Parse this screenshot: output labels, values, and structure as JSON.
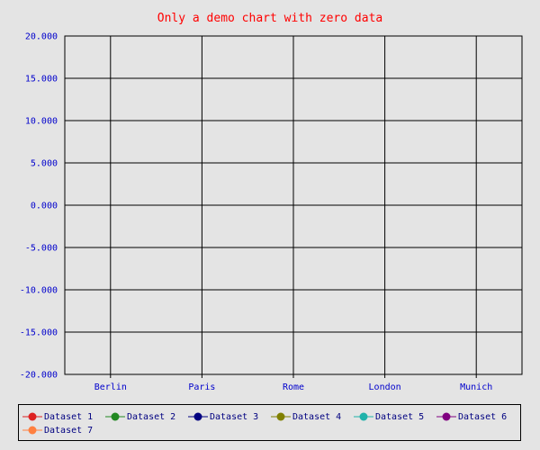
{
  "chart_data": {
    "type": "line",
    "title": "Only a demo chart with zero data",
    "categories": [
      "Berlin",
      "Paris",
      "Rome",
      "London",
      "Munich"
    ],
    "ylim": [
      -20,
      20
    ],
    "y_ticks": [
      "20.000",
      "15.000",
      "10.000",
      "5.000",
      "0.000",
      "-5.000",
      "-10.000",
      "-15.000",
      "-20.000"
    ],
    "grid": true,
    "legend_position": "bottom",
    "series": [
      {
        "name": "Dataset 1",
        "color": "#dd2222",
        "values": [
          0,
          0,
          0,
          0,
          0
        ]
      },
      {
        "name": "Dataset 2",
        "color": "#228822",
        "values": [
          0,
          0,
          0,
          0,
          0
        ]
      },
      {
        "name": "Dataset 3",
        "color": "#000080",
        "values": [
          0,
          0,
          0,
          0,
          0
        ]
      },
      {
        "name": "Dataset 4",
        "color": "#808000",
        "values": [
          0,
          0,
          0,
          0,
          0
        ]
      },
      {
        "name": "Dataset 5",
        "color": "#20b2aa",
        "values": [
          0,
          0,
          0,
          0,
          0
        ]
      },
      {
        "name": "Dataset 6",
        "color": "#800080",
        "values": [
          0,
          0,
          0,
          0,
          0
        ]
      },
      {
        "name": "Dataset 7",
        "color": "#ff8040",
        "values": [
          0,
          0,
          0,
          0,
          0
        ]
      }
    ]
  }
}
